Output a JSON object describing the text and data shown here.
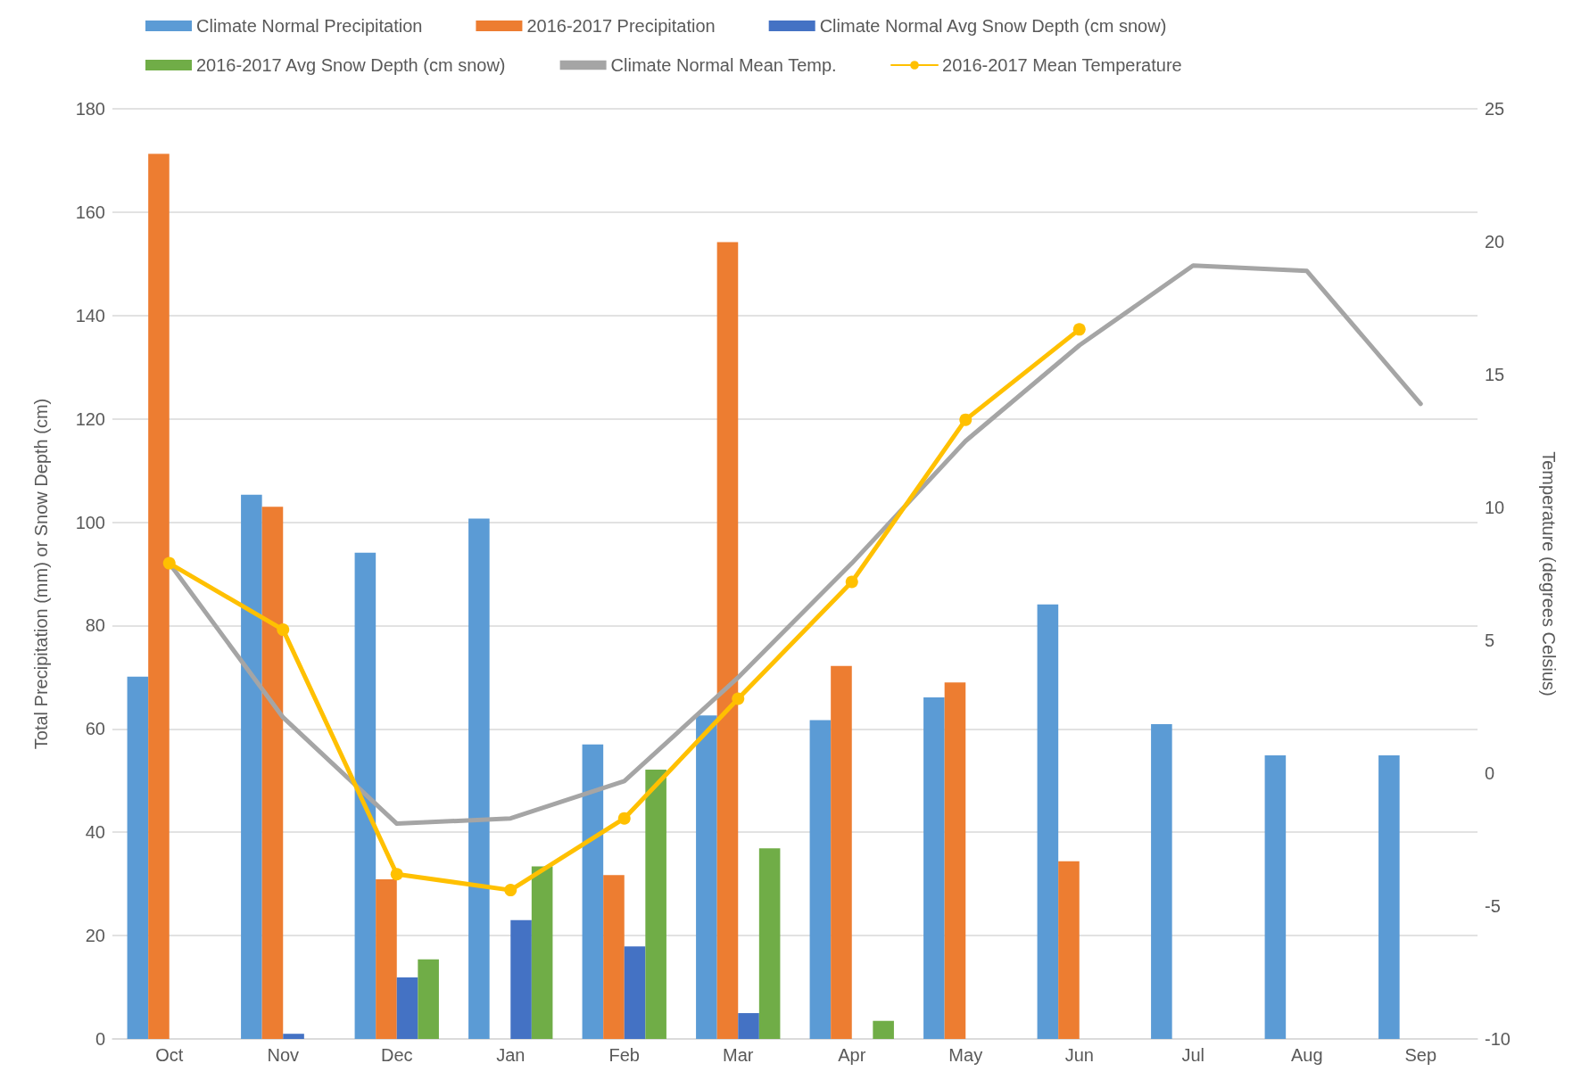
{
  "chart_data": {
    "type": "bar",
    "ylabel": "Total Precipitation (mm) or Snow Depth (cm)",
    "y2label": "Temperature (degrees Celsius)",
    "categories": [
      "Oct",
      "Nov",
      "Dec",
      "Jan",
      "Feb",
      "Mar",
      "Apr",
      "May",
      "Jun",
      "Jul",
      "Aug",
      "Sep"
    ],
    "series": [
      {
        "name": "Climate Normal Precipitation",
        "color": "#5b9bd5",
        "values": [
          70.1,
          105.3,
          94.1,
          100.7,
          57.0,
          62.6,
          61.7,
          66.1,
          84.1,
          60.9,
          54.9,
          54.9
        ]
      },
      {
        "name": "2016-2017 Precipitation",
        "color": "#ed7d31",
        "values": [
          171.3,
          103.0,
          30.9,
          null,
          31.7,
          154.2,
          72.2,
          69.0,
          34.4,
          null,
          null,
          null
        ]
      },
      {
        "name": "Climate Normal Avg Snow Depth (cm snow)",
        "color": "#4472c4",
        "values": [
          null,
          1.0,
          11.9,
          23.0,
          17.9,
          5.0,
          null,
          null,
          null,
          null,
          null,
          null
        ]
      },
      {
        "name": "2016-2017 Avg Snow Depth (cm snow)",
        "color": "#70ad47",
        "values": [
          null,
          null,
          15.4,
          33.4,
          52.1,
          36.9,
          3.5,
          null,
          null,
          null,
          null,
          null
        ]
      },
      {
        "name": "Climate Normal Mean Temp.",
        "type": "line",
        "axis": "y2",
        "color": "#a5a5a5",
        "marker": "none",
        "values": [
          7.9,
          2.1,
          -1.9,
          -1.7,
          -0.3,
          3.6,
          7.9,
          12.5,
          16.1,
          19.1,
          18.9,
          13.9
        ]
      },
      {
        "name": "2016-2017 Mean Temperature",
        "type": "line",
        "axis": "y2",
        "color": "#ffc000",
        "marker": "circle",
        "values": [
          7.9,
          5.4,
          -3.8,
          -4.4,
          -1.7,
          2.8,
          7.2,
          13.3,
          16.7,
          null,
          null,
          null
        ]
      }
    ],
    "ylim": [
      0,
      180
    ],
    "yticks": [
      0,
      20,
      40,
      60,
      80,
      100,
      120,
      140,
      160,
      180
    ],
    "y2lim": [
      -10,
      25
    ],
    "y2ticks": [
      -10,
      -5,
      0,
      5,
      10,
      15,
      20,
      25
    ],
    "grid": "y",
    "legend": "top"
  }
}
